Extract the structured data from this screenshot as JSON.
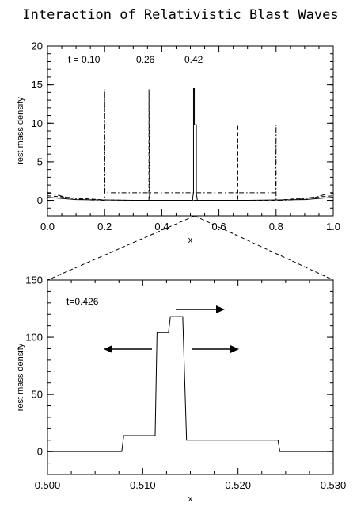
{
  "figure": {
    "title": "Interaction of Relativistic Blast Waves"
  },
  "chart_data": [
    {
      "type": "line",
      "xlabel": "x",
      "ylabel": "rest mass density",
      "xlim": [
        0.0,
        1.0
      ],
      "ylim": [
        -2,
        20
      ],
      "x_ticks": [
        0.0,
        0.2,
        0.4,
        0.6,
        0.8,
        1.0
      ],
      "x_tick_labels": [
        "0.0",
        "0.2",
        "0.4",
        "0.6",
        "0.8",
        "1.0"
      ],
      "y_ticks": [
        0,
        5,
        10,
        15,
        20
      ],
      "y_tick_labels": [
        "0",
        "5",
        "10",
        "15",
        "20"
      ],
      "time_labels": [
        "t = 0.10",
        "0.26",
        "0.42"
      ],
      "series": [
        {
          "style": "dash-dot",
          "x": [
            0.0,
            0.03,
            0.06,
            0.1,
            0.15,
            0.199,
            0.2,
            0.2,
            0.201,
            0.5,
            0.799,
            0.8,
            0.8,
            0.801,
            0.85,
            0.9,
            0.94,
            0.97,
            1.0
          ],
          "y": [
            0.95,
            0.75,
            0.45,
            0.2,
            0.05,
            0.0,
            0.0,
            14.4,
            1.0,
            1.0,
            1.0,
            9.8,
            0.0,
            0.0,
            0.05,
            0.2,
            0.45,
            0.75,
            0.95
          ]
        },
        {
          "style": "dashed",
          "x": [
            0.0,
            0.1,
            0.2,
            0.3,
            0.353,
            0.355,
            0.355,
            0.357,
            0.5,
            0.664,
            0.666,
            0.666,
            0.668,
            0.8,
            0.9,
            1.0
          ],
          "y": [
            0.6,
            0.3,
            0.05,
            0.0,
            0.0,
            0.0,
            14.4,
            0.0,
            0.0,
            0.0,
            9.8,
            0.0,
            0.0,
            0.0,
            0.3,
            0.6
          ],
          "_note_ignore": ""
        },
        {
          "style": "solid",
          "x": [
            0.0,
            0.1,
            0.3,
            0.5,
            0.508,
            0.508,
            0.511,
            0.511,
            0.514,
            0.514,
            0.521,
            0.521,
            0.524,
            0.524,
            0.55,
            0.7,
            0.9,
            1.0
          ],
          "y": [
            0.4,
            0.1,
            0.0,
            0.0,
            0.0,
            0.3,
            1.0,
            14.5,
            14.5,
            9.8,
            9.8,
            0.8,
            0.2,
            0.0,
            0.0,
            0.0,
            0.1,
            0.4
          ]
        }
      ]
    },
    {
      "type": "line",
      "xlabel": "x",
      "ylabel": "rest mass density",
      "xlim": [
        0.5,
        0.53
      ],
      "ylim": [
        -20,
        150
      ],
      "x_ticks": [
        0.5,
        0.51,
        0.52,
        0.53
      ],
      "x_tick_labels": [
        "0.500",
        "0.510",
        "0.520",
        "0.530"
      ],
      "y_ticks": [
        0,
        50,
        100,
        150
      ],
      "y_tick_labels": [
        "0",
        "50",
        "100",
        "150"
      ],
      "time_label": "t=0.426",
      "series": [
        {
          "style": "solid",
          "x": [
            0.5,
            0.5078,
            0.508,
            0.5113,
            0.5115,
            0.5127,
            0.5129,
            0.5142,
            0.5146,
            0.5242,
            0.5244,
            0.53
          ],
          "y": [
            0,
            0,
            14,
            14,
            104,
            104,
            118,
            118,
            10,
            10,
            0,
            0
          ]
        }
      ],
      "arrows": [
        "right",
        "left",
        "right"
      ]
    }
  ]
}
